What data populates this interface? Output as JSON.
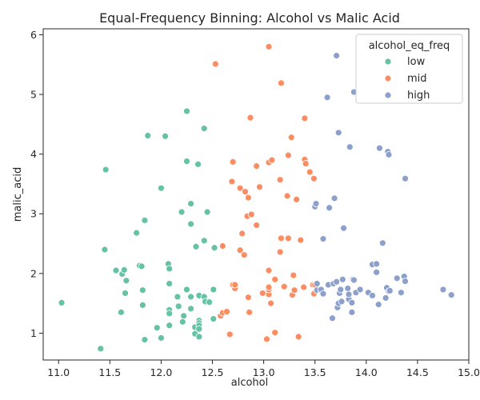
{
  "chart_data": {
    "type": "scatter",
    "title": "Equal-Frequency Binning: Alcohol vs Malic Acid",
    "xlabel": "alcohol",
    "ylabel": "malic_acid",
    "xlim": [
      10.85,
      15.0
    ],
    "ylim": [
      0.55,
      6.1
    ],
    "xticks": [
      11.0,
      11.5,
      12.0,
      12.5,
      13.0,
      13.5,
      14.0,
      14.5,
      15.0
    ],
    "yticks": [
      1,
      2,
      3,
      4,
      5,
      6
    ],
    "grid": false,
    "legend": {
      "title": "alcohol_eq_freq",
      "position": "top-right"
    },
    "series": [
      {
        "name": "low",
        "color": "#66c2a5",
        "points": [
          [
            11.03,
            1.51
          ],
          [
            11.41,
            0.74
          ],
          [
            11.45,
            2.4
          ],
          [
            11.46,
            3.74
          ],
          [
            11.56,
            2.05
          ],
          [
            11.61,
            1.35
          ],
          [
            11.62,
            1.99
          ],
          [
            11.64,
            2.06
          ],
          [
            11.65,
            1.67
          ],
          [
            11.66,
            1.88
          ],
          [
            11.76,
            2.68
          ],
          [
            11.79,
            2.13
          ],
          [
            11.81,
            2.12
          ],
          [
            11.82,
            1.72
          ],
          [
            11.82,
            1.47
          ],
          [
            11.84,
            2.89
          ],
          [
            11.84,
            0.89
          ],
          [
            11.87,
            4.31
          ],
          [
            11.96,
            1.09
          ],
          [
            12.0,
            0.92
          ],
          [
            12.0,
            3.43
          ],
          [
            12.04,
            4.3
          ],
          [
            12.07,
            2.16
          ],
          [
            12.08,
            2.08
          ],
          [
            12.08,
            1.83
          ],
          [
            12.08,
            1.39
          ],
          [
            12.08,
            1.33
          ],
          [
            12.08,
            1.13
          ],
          [
            12.16,
            1.61
          ],
          [
            12.17,
            1.45
          ],
          [
            12.2,
            3.03
          ],
          [
            12.21,
            1.19
          ],
          [
            12.22,
            1.29
          ],
          [
            12.25,
            3.88
          ],
          [
            12.25,
            4.72
          ],
          [
            12.25,
            1.73
          ],
          [
            12.29,
            3.17
          ],
          [
            12.29,
            2.83
          ],
          [
            12.29,
            1.61
          ],
          [
            12.29,
            1.41
          ],
          [
            12.33,
            0.99
          ],
          [
            12.33,
            1.1
          ],
          [
            12.34,
            2.45
          ],
          [
            12.36,
            3.83
          ],
          [
            12.37,
            1.63
          ],
          [
            12.37,
            1.21
          ],
          [
            12.37,
            1.17
          ],
          [
            12.37,
            1.13
          ],
          [
            12.37,
            1.07
          ],
          [
            12.37,
            0.94
          ],
          [
            12.42,
            2.55
          ],
          [
            12.42,
            4.43
          ],
          [
            12.42,
            1.61
          ],
          [
            12.43,
            1.53
          ],
          [
            12.45,
            3.03
          ],
          [
            12.47,
            1.52
          ],
          [
            12.51,
            1.73
          ],
          [
            12.51,
            1.24
          ],
          [
            12.52,
            2.43
          ]
        ]
      },
      {
        "name": "mid",
        "color": "#fc8d62",
        "points": [
          [
            12.53,
            5.51
          ],
          [
            12.58,
            1.29
          ],
          [
            12.6,
            1.34
          ],
          [
            12.6,
            2.46
          ],
          [
            12.64,
            1.36
          ],
          [
            12.67,
            0.98
          ],
          [
            12.69,
            3.54
          ],
          [
            12.7,
            3.87
          ],
          [
            12.7,
            1.81
          ],
          [
            12.72,
            1.75
          ],
          [
            12.72,
            1.81
          ],
          [
            12.77,
            3.43
          ],
          [
            12.77,
            2.39
          ],
          [
            12.79,
            2.67
          ],
          [
            12.81,
            2.31
          ],
          [
            12.82,
            3.37
          ],
          [
            12.84,
            2.96
          ],
          [
            12.85,
            3.27
          ],
          [
            12.85,
            1.6
          ],
          [
            12.86,
            1.35
          ],
          [
            12.87,
            4.61
          ],
          [
            12.88,
            2.99
          ],
          [
            12.93,
            3.8
          ],
          [
            12.93,
            2.81
          ],
          [
            12.96,
            3.45
          ],
          [
            12.99,
            1.67
          ],
          [
            13.03,
            0.9
          ],
          [
            13.05,
            1.65
          ],
          [
            13.05,
            1.73
          ],
          [
            13.05,
            1.77
          ],
          [
            13.05,
            2.05
          ],
          [
            13.05,
            3.86
          ],
          [
            13.05,
            5.8
          ],
          [
            13.07,
            1.5
          ],
          [
            13.08,
            3.9
          ],
          [
            13.11,
            1.01
          ],
          [
            13.11,
            1.9
          ],
          [
            13.16,
            3.57
          ],
          [
            13.16,
            2.36
          ],
          [
            13.17,
            2.59
          ],
          [
            13.17,
            5.19
          ],
          [
            13.2,
            1.78
          ],
          [
            13.23,
            3.3
          ],
          [
            13.24,
            2.59
          ],
          [
            13.24,
            3.98
          ],
          [
            13.27,
            4.28
          ],
          [
            13.28,
            1.64
          ],
          [
            13.29,
            1.97
          ],
          [
            13.3,
            1.72
          ],
          [
            13.32,
            3.24
          ],
          [
            13.34,
            0.94
          ],
          [
            13.36,
            2.56
          ],
          [
            13.39,
            1.77
          ],
          [
            13.4,
            3.91
          ],
          [
            13.4,
            4.6
          ],
          [
            13.41,
            3.84
          ],
          [
            13.45,
            3.7
          ],
          [
            13.48,
            1.81
          ],
          [
            13.49,
            3.59
          ],
          [
            13.49,
            1.66
          ],
          [
            13.5,
            1.81
          ]
        ]
      },
      {
        "name": "high",
        "color": "#8da0cb",
        "points": [
          [
            13.5,
            3.12
          ],
          [
            13.51,
            3.17
          ],
          [
            13.52,
            1.83
          ],
          [
            13.52,
            1.72
          ],
          [
            13.56,
            1.71
          ],
          [
            13.56,
            1.73
          ],
          [
            13.58,
            1.66
          ],
          [
            13.58,
            2.58
          ],
          [
            13.62,
            4.95
          ],
          [
            13.63,
            1.81
          ],
          [
            13.64,
            3.1
          ],
          [
            13.67,
            1.25
          ],
          [
            13.68,
            1.83
          ],
          [
            13.69,
            3.26
          ],
          [
            13.71,
            1.86
          ],
          [
            13.71,
            5.65
          ],
          [
            13.72,
            1.43
          ],
          [
            13.73,
            4.36
          ],
          [
            13.73,
            1.5
          ],
          [
            13.74,
            1.67
          ],
          [
            13.75,
            1.73
          ],
          [
            13.76,
            1.53
          ],
          [
            13.77,
            1.9
          ],
          [
            13.78,
            2.76
          ],
          [
            13.82,
            1.75
          ],
          [
            13.83,
            1.57
          ],
          [
            13.83,
            1.65
          ],
          [
            13.84,
            4.12
          ],
          [
            13.86,
            1.35
          ],
          [
            13.86,
            1.51
          ],
          [
            13.87,
            1.9
          ],
          [
            13.88,
            1.89
          ],
          [
            13.88,
            5.04
          ],
          [
            13.9,
            1.68
          ],
          [
            13.94,
            1.73
          ],
          [
            14.02,
            1.68
          ],
          [
            14.06,
            1.63
          ],
          [
            14.06,
            2.15
          ],
          [
            14.1,
            2.16
          ],
          [
            14.1,
            2.02
          ],
          [
            14.12,
            1.48
          ],
          [
            14.13,
            4.1
          ],
          [
            14.16,
            2.51
          ],
          [
            14.19,
            1.59
          ],
          [
            14.2,
            1.76
          ],
          [
            14.21,
            4.04
          ],
          [
            14.22,
            1.7
          ],
          [
            14.22,
            3.99
          ],
          [
            14.23,
            1.71
          ],
          [
            14.3,
            1.92
          ],
          [
            14.34,
            1.68
          ],
          [
            14.37,
            1.95
          ],
          [
            14.38,
            1.87
          ],
          [
            14.38,
            3.59
          ],
          [
            14.75,
            1.73
          ],
          [
            14.83,
            1.64
          ]
        ]
      }
    ]
  }
}
